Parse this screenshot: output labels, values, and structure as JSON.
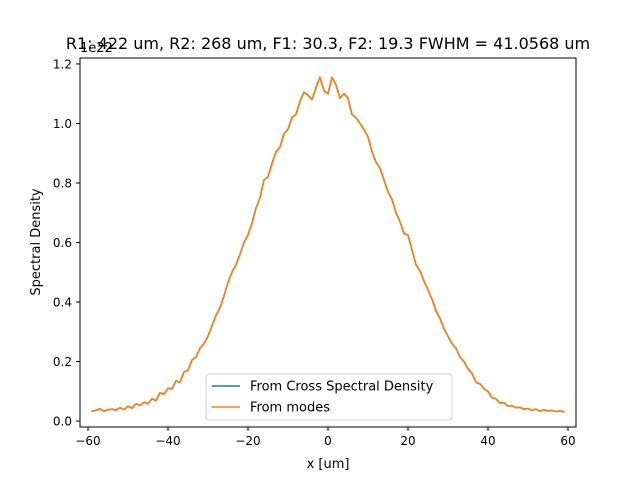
{
  "chart_data": {
    "type": "line",
    "title": "R1: 422 um, R2: 268 um, F1: 30.3, F2: 19.3  FWHM = 41.0568 um",
    "xlabel": "x [um]",
    "ylabel": "Spectral Density",
    "offset_label": "1e22",
    "xlim": [
      -62,
      62
    ],
    "ylim": [
      -0.02,
      1.22
    ],
    "xticks": [
      -60,
      -40,
      -20,
      0,
      20,
      40,
      60
    ],
    "xtick_labels": [
      "−60",
      "−40",
      "−20",
      "0",
      "20",
      "40",
      "60"
    ],
    "yticks": [
      0.0,
      0.2,
      0.4,
      0.6,
      0.8,
      1.0,
      1.2
    ],
    "ytick_labels": [
      "0.0",
      "0.2",
      "0.4",
      "0.6",
      "0.8",
      "1.0",
      "1.2"
    ],
    "grid": false,
    "legend_position": "lower-center",
    "x": [
      -59,
      -58,
      -57,
      -56,
      -55,
      -54,
      -53,
      -52,
      -51,
      -50,
      -49,
      -48,
      -47,
      -46,
      -45,
      -44,
      -43,
      -42,
      -41,
      -40,
      -39,
      -38,
      -37,
      -36,
      -35,
      -34,
      -33,
      -32,
      -31,
      -30,
      -29,
      -28,
      -27,
      -26,
      -25,
      -24,
      -23,
      -22,
      -21,
      -20,
      -19,
      -18,
      -17,
      -16,
      -15,
      -14,
      -13,
      -12,
      -11,
      -10,
      -9,
      -8,
      -7,
      -6,
      -5,
      -4,
      -3,
      -2,
      -1,
      0,
      1,
      2,
      3,
      4,
      5,
      6,
      7,
      8,
      9,
      10,
      11,
      12,
      13,
      14,
      15,
      16,
      17,
      18,
      19,
      20,
      21,
      22,
      23,
      24,
      25,
      26,
      27,
      28,
      29,
      30,
      31,
      32,
      33,
      34,
      35,
      36,
      37,
      38,
      39,
      40,
      41,
      42,
      43,
      44,
      45,
      46,
      47,
      48,
      49,
      50,
      51,
      52,
      53,
      54,
      55,
      56,
      57,
      58,
      59
    ],
    "series": [
      {
        "name": "From Cross Spectral Density",
        "color": "#1f77b4",
        "values": [
          0.033,
          0.036,
          0.041,
          0.033,
          0.038,
          0.04,
          0.036,
          0.045,
          0.038,
          0.05,
          0.043,
          0.058,
          0.052,
          0.063,
          0.058,
          0.075,
          0.068,
          0.095,
          0.09,
          0.11,
          0.108,
          0.135,
          0.13,
          0.165,
          0.17,
          0.205,
          0.215,
          0.245,
          0.26,
          0.285,
          0.32,
          0.355,
          0.38,
          0.42,
          0.465,
          0.5,
          0.525,
          0.56,
          0.6,
          0.625,
          0.665,
          0.715,
          0.75,
          0.81,
          0.82,
          0.865,
          0.905,
          0.92,
          0.965,
          0.98,
          1.02,
          1.03,
          1.075,
          1.105,
          1.095,
          1.08,
          1.12,
          1.155,
          1.11,
          1.1,
          1.155,
          1.13,
          1.085,
          1.1,
          1.085,
          1.03,
          1.02,
          1.0,
          0.98,
          0.955,
          0.905,
          0.87,
          0.85,
          0.81,
          0.77,
          0.745,
          0.7,
          0.67,
          0.63,
          0.625,
          0.575,
          0.525,
          0.505,
          0.47,
          0.44,
          0.41,
          0.37,
          0.345,
          0.31,
          0.285,
          0.26,
          0.245,
          0.215,
          0.2,
          0.175,
          0.16,
          0.13,
          0.125,
          0.108,
          0.1,
          0.078,
          0.075,
          0.06,
          0.062,
          0.05,
          0.052,
          0.045,
          0.046,
          0.04,
          0.042,
          0.036,
          0.04,
          0.033,
          0.038,
          0.034,
          0.036,
          0.032,
          0.034,
          0.031
        ]
      },
      {
        "name": "From modes",
        "color": "#ff7f0e",
        "values": [
          0.033,
          0.036,
          0.041,
          0.033,
          0.038,
          0.04,
          0.036,
          0.045,
          0.038,
          0.05,
          0.043,
          0.058,
          0.052,
          0.063,
          0.058,
          0.075,
          0.068,
          0.095,
          0.09,
          0.11,
          0.108,
          0.135,
          0.13,
          0.165,
          0.17,
          0.205,
          0.215,
          0.245,
          0.26,
          0.285,
          0.32,
          0.355,
          0.38,
          0.42,
          0.465,
          0.5,
          0.525,
          0.56,
          0.6,
          0.625,
          0.665,
          0.715,
          0.75,
          0.81,
          0.82,
          0.865,
          0.905,
          0.92,
          0.965,
          0.98,
          1.02,
          1.03,
          1.075,
          1.105,
          1.095,
          1.08,
          1.12,
          1.155,
          1.11,
          1.1,
          1.155,
          1.13,
          1.085,
          1.1,
          1.085,
          1.03,
          1.02,
          1.0,
          0.98,
          0.955,
          0.905,
          0.87,
          0.85,
          0.81,
          0.77,
          0.745,
          0.7,
          0.67,
          0.63,
          0.625,
          0.575,
          0.525,
          0.505,
          0.47,
          0.44,
          0.41,
          0.37,
          0.345,
          0.31,
          0.285,
          0.26,
          0.245,
          0.215,
          0.2,
          0.175,
          0.16,
          0.13,
          0.125,
          0.108,
          0.1,
          0.078,
          0.075,
          0.06,
          0.062,
          0.05,
          0.052,
          0.045,
          0.046,
          0.04,
          0.042,
          0.036,
          0.04,
          0.033,
          0.038,
          0.034,
          0.036,
          0.032,
          0.034,
          0.031
        ]
      }
    ]
  }
}
